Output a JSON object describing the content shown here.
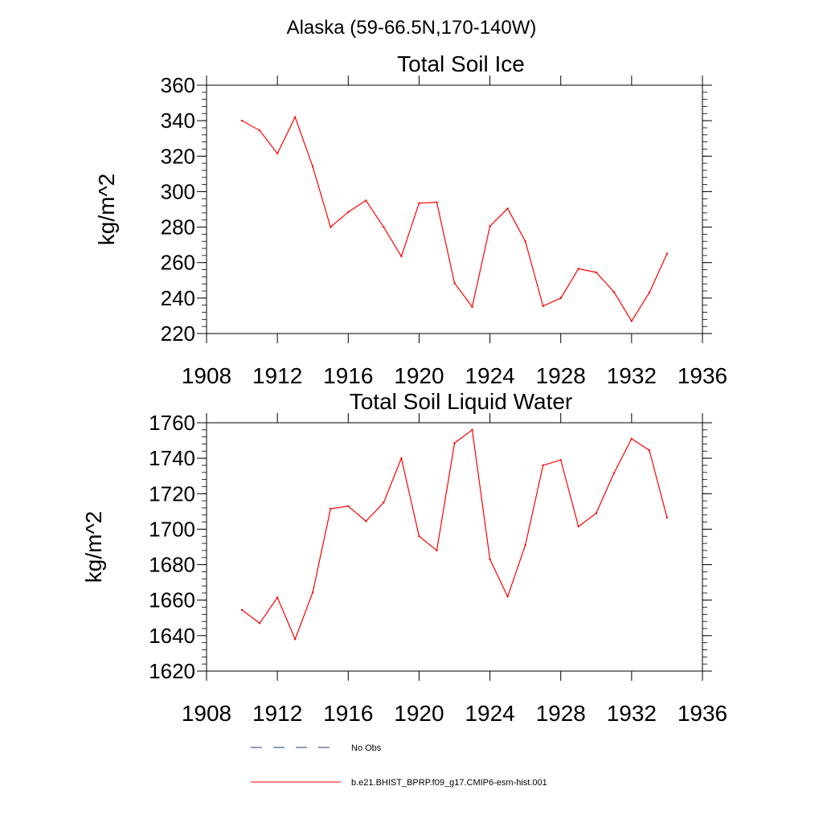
{
  "figure": {
    "suptitle": "Alaska (59-66.5N,170-140W)"
  },
  "colors": {
    "model": "#ff0000",
    "obs": "#2a3a6a",
    "axis": "#000000"
  },
  "legend": {
    "placement": "bottom-center",
    "items": [
      {
        "label": "No Obs",
        "style": "dashed",
        "color": "#2a3a6a"
      },
      {
        "label": "b.e21.BHIST_BPRP.f09_g17.CMIP6-esm-hist.001",
        "style": "solid",
        "color": "#ff0000"
      }
    ]
  },
  "chart_data": [
    {
      "type": "line",
      "title": "Total Soil Ice",
      "xlabel": "",
      "ylabel": "kg/m^2",
      "xlim": [
        1908,
        1936
      ],
      "ylim": [
        220,
        360
      ],
      "xticks": [
        1908,
        1912,
        1916,
        1920,
        1924,
        1928,
        1932,
        1936
      ],
      "yticks": [
        220,
        240,
        260,
        280,
        300,
        320,
        340,
        360
      ],
      "grid": false,
      "x": [
        1910,
        1911,
        1912,
        1913,
        1914,
        1915,
        1916,
        1917,
        1918,
        1919,
        1920,
        1921,
        1922,
        1923,
        1924,
        1925,
        1926,
        1927,
        1928,
        1929,
        1930,
        1931,
        1932,
        1933,
        1934
      ],
      "series": [
        {
          "name": "b.e21.BHIST_BPRP.f09_g17.CMIP6-esm-hist.001",
          "values": [
            340,
            334.5,
            321.5,
            342,
            314,
            280,
            288.5,
            295,
            280,
            263.5,
            293.5,
            294,
            248.5,
            235,
            280.5,
            290.5,
            272,
            235.5,
            240,
            256.5,
            254.5,
            243.5,
            227,
            243,
            265
          ]
        }
      ]
    },
    {
      "type": "line",
      "title": "Total Soil Liquid Water",
      "xlabel": "",
      "ylabel": "kg/m^2",
      "xlim": [
        1908,
        1936
      ],
      "ylim": [
        1620,
        1760
      ],
      "xticks": [
        1908,
        1912,
        1916,
        1920,
        1924,
        1928,
        1932,
        1936
      ],
      "yticks": [
        1620,
        1640,
        1660,
        1680,
        1700,
        1720,
        1740,
        1760
      ],
      "grid": false,
      "x": [
        1910,
        1911,
        1912,
        1913,
        1914,
        1915,
        1916,
        1917,
        1918,
        1919,
        1920,
        1921,
        1922,
        1923,
        1924,
        1925,
        1926,
        1927,
        1928,
        1929,
        1930,
        1931,
        1932,
        1933,
        1934
      ],
      "series": [
        {
          "name": "b.e21.BHIST_BPRP.f09_g17.CMIP6-esm-hist.001",
          "values": [
            1654.5,
            1647,
            1661.5,
            1638,
            1664.5,
            1711.5,
            1713,
            1704.5,
            1715,
            1740,
            1696,
            1688,
            1748.5,
            1756,
            1683,
            1662,
            1691,
            1736,
            1739,
            1701.5,
            1709,
            1731.5,
            1751,
            1744.5,
            1706.5
          ]
        }
      ]
    }
  ]
}
